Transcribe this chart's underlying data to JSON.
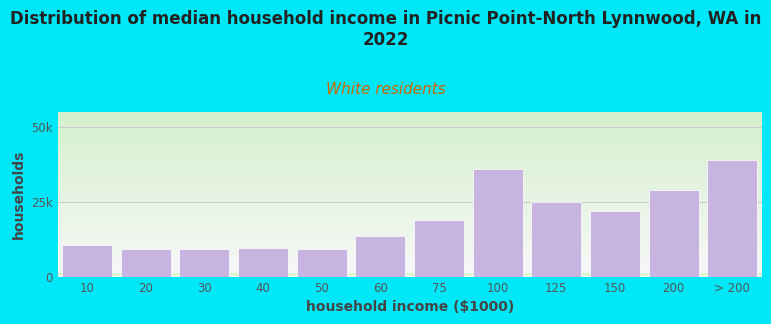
{
  "title": "Distribution of median household income in Picnic Point-North Lynnwood, WA in\n2022",
  "subtitle": "White residents",
  "xlabel": "household income ($1000)",
  "ylabel": "households",
  "categories": [
    "10",
    "20",
    "30",
    "40",
    "50",
    "60",
    "75",
    "100",
    "125",
    "150",
    "200",
    "> 200"
  ],
  "values": [
    10500,
    9200,
    9200,
    9500,
    9200,
    13500,
    19000,
    36000,
    25000,
    22000,
    29000,
    39000
  ],
  "bar_color": "#c8b4e0",
  "bar_edgecolor": "#ffffff",
  "background_outer": "#00e8f8",
  "background_plot_topleft": "#d4edcc",
  "background_plot_topright": "#f0f0f0",
  "background_plot_bottom": "#f8f8f8",
  "title_fontsize": 12,
  "subtitle_fontsize": 11,
  "subtitle_color": "#cc6600",
  "axis_label_fontsize": 10,
  "tick_fontsize": 8.5,
  "ylim": [
    0,
    55000
  ],
  "ytick_labels": [
    "0",
    "25k",
    "50k"
  ],
  "ytick_vals": [
    0,
    25000,
    50000
  ],
  "grid_color": "#cccccc"
}
